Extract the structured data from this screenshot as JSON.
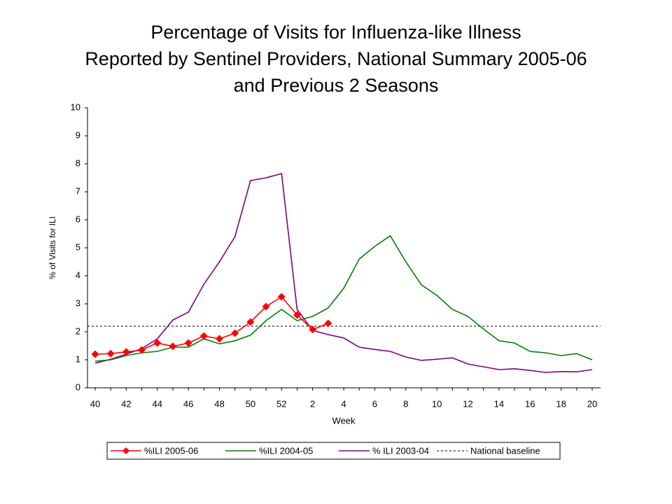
{
  "chart_data": {
    "type": "line",
    "title": [
      "Percentage of Visits for Influenza-like Illness",
      "Reported by Sentinel Providers, National Summary 2005-06",
      "and Previous 2 Seasons"
    ],
    "x_label": "Week",
    "y_label": "% of Visits for ILI",
    "categories": [
      "40",
      null,
      "42",
      null,
      "44",
      null,
      "46",
      null,
      "48",
      null,
      "50",
      null,
      "52",
      null,
      "2",
      null,
      "4",
      null,
      "6",
      null,
      "8",
      null,
      "10",
      null,
      "12",
      null,
      "14",
      null,
      "16",
      null,
      "18",
      null,
      "20"
    ],
    "series": [
      {
        "name": "%ILI 2005-06",
        "color": "#ff0000",
        "marker": "diamond",
        "values": [
          1.2,
          1.22,
          1.28,
          1.35,
          1.6,
          1.48,
          1.6,
          1.85,
          1.75,
          1.95,
          2.35,
          2.9,
          3.25,
          2.6,
          2.08,
          2.3,
          null,
          null,
          null,
          null,
          null,
          null,
          null,
          null,
          null,
          null,
          null,
          null,
          null,
          null,
          null,
          null,
          null
        ]
      },
      {
        "name": "%ILI 2004-05",
        "color": "#008000",
        "values": [
          0.95,
          1.0,
          1.15,
          1.25,
          1.3,
          1.45,
          1.45,
          1.75,
          1.57,
          1.68,
          1.88,
          2.4,
          2.8,
          2.4,
          2.55,
          2.85,
          3.55,
          4.6,
          5.05,
          5.43,
          4.5,
          3.68,
          3.3,
          2.8,
          2.55,
          2.1,
          1.68,
          1.6,
          1.3,
          1.25,
          1.15,
          1.22,
          1.0
        ]
      },
      {
        "name": "% ILI 2003-04",
        "color": "#800080",
        "values": [
          0.88,
          1.02,
          1.2,
          1.4,
          1.75,
          2.42,
          2.7,
          3.7,
          4.5,
          5.4,
          7.4,
          7.5,
          7.65,
          2.8,
          2.05,
          1.9,
          1.78,
          1.45,
          1.37,
          1.3,
          1.1,
          0.98,
          1.02,
          1.07,
          0.85,
          0.75,
          0.65,
          0.68,
          0.62,
          0.55,
          0.58,
          0.57,
          0.65
        ]
      }
    ],
    "reference_line": {
      "name": "National baseline",
      "value": 2.2,
      "color": "#000000",
      "dashed": true
    },
    "ylim": [
      0,
      10
    ],
    "yticks": [
      0,
      1,
      2,
      3,
      4,
      5,
      6,
      7,
      8,
      9,
      10
    ],
    "grid": false,
    "legend": "bottom"
  }
}
